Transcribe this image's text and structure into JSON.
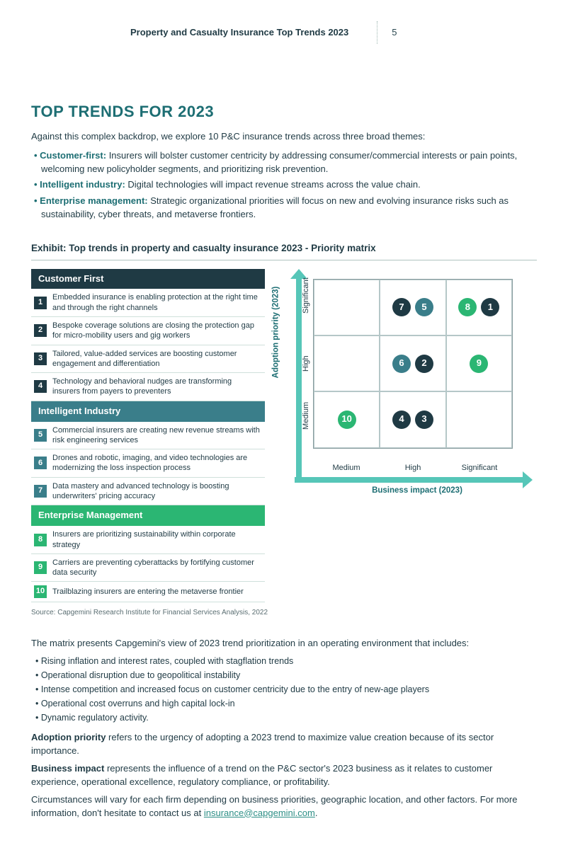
{
  "colors": {
    "teal_dark": "#1d6e73",
    "teal_header": "#56c6b8",
    "navy": "#1f3a44",
    "green": "#1fa36a",
    "green_bright": "#2bb673",
    "grid_border": "#8a9ea0",
    "text": "#1f3a44",
    "link": "#2d8f86",
    "cat_cf_bg": "#1f3a44",
    "cat_ii_bg": "#3a7e8a",
    "cat_em_bg": "#2bb673",
    "arrow": "#56c6b8"
  },
  "header": {
    "title": "Property and Casualty Insurance Top Trends 2023",
    "page": "5"
  },
  "section_title": "TOP TRENDS FOR 2023",
  "intro": "Against this complex backdrop, we explore 10 P&C insurance trends across three broad themes:",
  "themes": [
    {
      "label": "Customer-first:",
      "color": "#1d6e73",
      "text": " Insurers will bolster customer centricity by addressing consumer/commercial interests or pain points, welcoming new policyholder segments, and prioritizing risk prevention."
    },
    {
      "label": "Intelligent industry:",
      "color": "#1d6e73",
      "text": " Digital technologies will impact revenue streams across the value chain."
    },
    {
      "label": "Enterprise management:",
      "color": "#1d6e73",
      "text": " Strategic organizational priorities will focus on new and evolving insurance risks such as sustainability, cyber threats, and metaverse frontiers."
    }
  ],
  "exhibit_title": "Exhibit: Top trends in property and casualty insurance 2023 - Priority matrix",
  "categories": [
    {
      "name": "Customer First",
      "bg": "#1f3a44",
      "num_bg": "#1f3a44",
      "items": [
        {
          "n": "1",
          "text": "Embedded insurance is enabling protection at the right time and through the right channels"
        },
        {
          "n": "2",
          "text": "Bespoke coverage solutions are closing the protection gap for micro-mobility users and gig workers"
        },
        {
          "n": "3",
          "text": "Tailored, value-added services are boosting customer engagement and differentiation"
        },
        {
          "n": "4",
          "text": "Technology and behavioral nudges are transforming insurers from payers to preventers"
        }
      ]
    },
    {
      "name": "Intelligent Industry",
      "bg": "#3a7e8a",
      "num_bg": "#3a7e8a",
      "items": [
        {
          "n": "5",
          "text": "Commercial insurers are creating new revenue streams with risk engineering services"
        },
        {
          "n": "6",
          "text": "Drones and robotic, imaging, and video technologies are modernizing the loss inspection process"
        },
        {
          "n": "7",
          "text": "Data mastery and advanced technology is boosting underwriters' pricing accuracy"
        }
      ]
    },
    {
      "name": "Enterprise Management",
      "bg": "#2bb673",
      "num_bg": "#2bb673",
      "items": [
        {
          "n": "8",
          "text": "Insurers are prioritizing sustainability within corporate strategy"
        },
        {
          "n": "9",
          "text": "Carriers are preventing cyberattacks by fortifying customer data security"
        },
        {
          "n": "10",
          "text": "Trailblazing insurers are entering the metaverse frontier"
        }
      ]
    }
  ],
  "source": "Source: Capgemini Research Institute for Financial Services Analysis, 2022",
  "matrix": {
    "y_label": "Adoption priority (2023)",
    "x_label": "Business impact (2023)",
    "y_ticks": [
      "Medium",
      "High",
      "Significant"
    ],
    "x_ticks": [
      "Medium",
      "High",
      "Significant"
    ],
    "cells": [
      [
        [],
        [
          {
            "n": "7",
            "c": "#1f3a44"
          },
          {
            "n": "5",
            "c": "#3a7e8a"
          }
        ],
        [
          {
            "n": "8",
            "c": "#2bb673"
          },
          {
            "n": "1",
            "c": "#1f3a44"
          }
        ]
      ],
      [
        [],
        [
          {
            "n": "6",
            "c": "#3a7e8a"
          },
          {
            "n": "2",
            "c": "#1f3a44"
          }
        ],
        [
          {
            "n": "9",
            "c": "#2bb673"
          }
        ]
      ],
      [
        [
          {
            "n": "10",
            "c": "#2bb673"
          }
        ],
        [
          {
            "n": "4",
            "c": "#1f3a44"
          },
          {
            "n": "3",
            "c": "#1f3a44"
          }
        ],
        []
      ]
    ]
  },
  "after_intro": "The matrix presents Capgemini's view of 2023 trend prioritization in an operating environment that includes:",
  "environment": [
    "Rising inflation and interest rates, coupled with stagflation trends",
    "Operational disruption due to geopolitical instability",
    "Intense competition and increased focus on customer centricity due to the entry of new-age players",
    "Operational cost overruns and high capital lock-in",
    "Dynamic regulatory activity."
  ],
  "defs": [
    {
      "label": "Adoption priority",
      "text": " refers to the urgency of adopting a 2023 trend to maximize value creation because of its sector importance."
    },
    {
      "label": "Business impact",
      "text": " represents the influence of a trend on the P&C sector's 2023 business as it relates to customer experience, operational excellence, regulatory compliance, or profitability."
    }
  ],
  "closing_pre": "Circumstances will vary for each firm depending on business priorities, geographic location, and other factors. For more information, don't hesitate to contact us at ",
  "email": "insurance@capgemini.com",
  "closing_post": "."
}
